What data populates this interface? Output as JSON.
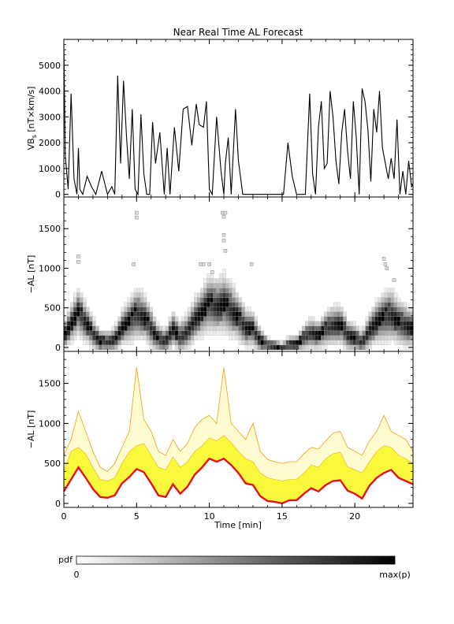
{
  "title": "Near Real Time AL Forecast",
  "colors": {
    "axis": "#000000",
    "vbs_line": "#000000",
    "band_fill": "#f7f93a",
    "band_edge": "#f5a623",
    "median_line": "#e5111b",
    "pdf_low": "#ffffff",
    "pdf_high": "#000000"
  },
  "colorbar": {
    "label": "pdf",
    "min_label": "0",
    "max_label": "max(p)"
  },
  "chart_data": [
    {
      "id": "vbs",
      "type": "line",
      "title": "Near Real Time AL Forecast",
      "ylabel_main": "VB",
      "ylabel_sub": "s",
      "ylabel_rest": " [nT×km/s]",
      "xlim": [
        0,
        24
      ],
      "ylim": [
        -100,
        6000
      ],
      "yticks": [
        0,
        1000,
        2000,
        3000,
        4000,
        5000
      ],
      "xticks": [
        0,
        5,
        10,
        15,
        20
      ],
      "series": [
        {
          "x": [
            0,
            0.1,
            0.3,
            0.5,
            0.7,
            0.9,
            1.0,
            1.1,
            1.3,
            1.6,
            1.9,
            2.2,
            2.6,
            3.0,
            3.3,
            3.5,
            3.7,
            3.9,
            4.1,
            4.3,
            4.5,
            4.7,
            4.9,
            5.1,
            5.3,
            5.5,
            5.7,
            5.9,
            6.1,
            6.3,
            6.6,
            6.9,
            7.1,
            7.3,
            7.6,
            7.9,
            8.2,
            8.5,
            8.8,
            9.1,
            9.3,
            9.6,
            9.8,
            10.0,
            10.2,
            10.5,
            10.8,
            11.0,
            11.1,
            11.3,
            11.5,
            11.8,
            12.0,
            12.3,
            12.6,
            12.9,
            13.1,
            13.3,
            13.6,
            13.9,
            14.2,
            14.5,
            14.8,
            15.1,
            15.4,
            15.7,
            16.0,
            16.3,
            16.6,
            16.9,
            17.1,
            17.3,
            17.5,
            17.7,
            17.9,
            18.1,
            18.3,
            18.5,
            18.7,
            18.9,
            19.1,
            19.3,
            19.5,
            19.7,
            19.9,
            20.1,
            20.3,
            20.5,
            20.7,
            20.9,
            21.1,
            21.3,
            21.5,
            21.7,
            21.9,
            22.1,
            22.3,
            22.5,
            22.7,
            22.9,
            23.1,
            23.3,
            23.5,
            23.7,
            23.9,
            24.0
          ],
          "y": [
            5800,
            1500,
            200,
            3900,
            600,
            0,
            1800,
            200,
            0,
            700,
            300,
            0,
            900,
            0,
            300,
            0,
            4600,
            1200,
            4400,
            2300,
            600,
            3300,
            200,
            0,
            3100,
            800,
            0,
            0,
            2800,
            1200,
            2400,
            0,
            1800,
            0,
            2600,
            900,
            3300,
            3400,
            1900,
            3500,
            2700,
            2600,
            3600,
            200,
            0,
            3000,
            900,
            0,
            1200,
            2200,
            0,
            3300,
            1300,
            0,
            0,
            0,
            0,
            0,
            0,
            0,
            0,
            0,
            0,
            0,
            2000,
            700,
            0,
            0,
            0,
            3900,
            800,
            0,
            2600,
            3600,
            1000,
            1200,
            4000,
            3000,
            1300,
            400,
            2400,
            3300,
            1700,
            600,
            3600,
            2200,
            0,
            4100,
            3600,
            2500,
            500,
            3300,
            2400,
            4000,
            1800,
            1200,
            600,
            1400,
            600,
            2900,
            0,
            900,
            0,
            1300,
            300,
            400
          ]
        }
      ]
    },
    {
      "id": "al-pdf",
      "type": "heatmap",
      "ylabel": "−AL [nT]",
      "xlim": [
        0,
        24
      ],
      "ylim": [
        -50,
        1900
      ],
      "yticks": [
        0,
        500,
        1000,
        1500
      ],
      "xticks": [
        0,
        5,
        10,
        15,
        20
      ],
      "x": [
        0,
        0.5,
        1,
        1.5,
        2,
        2.5,
        3,
        3.5,
        4,
        4.5,
        5,
        5.5,
        6,
        6.5,
        7,
        7.5,
        8,
        8.5,
        9,
        9.5,
        10,
        10.5,
        11,
        11.5,
        12,
        12.5,
        13,
        13.5,
        14,
        14.5,
        15,
        15.5,
        16,
        16.5,
        17,
        17.5,
        18,
        18.5,
        19,
        19.5,
        20,
        20.5,
        21,
        21.5,
        22,
        22.5,
        23,
        23.5,
        24
      ],
      "median": [
        150,
        300,
        450,
        320,
        180,
        80,
        70,
        100,
        250,
        330,
        430,
        390,
        250,
        100,
        80,
        240,
        120,
        210,
        360,
        450,
        560,
        520,
        560,
        480,
        380,
        250,
        230,
        90,
        30,
        20,
        0,
        40,
        40,
        120,
        190,
        150,
        230,
        280,
        290,
        160,
        120,
        60,
        220,
        320,
        380,
        420,
        320,
        280,
        240
      ],
      "spread": [
        180,
        250,
        300,
        260,
        200,
        150,
        140,
        160,
        230,
        280,
        320,
        300,
        250,
        180,
        170,
        230,
        200,
        230,
        280,
        320,
        360,
        340,
        380,
        340,
        300,
        250,
        230,
        160,
        100,
        80,
        60,
        110,
        110,
        160,
        200,
        180,
        220,
        250,
        260,
        200,
        180,
        150,
        230,
        280,
        320,
        330,
        290,
        270,
        250
      ],
      "outliers": [
        {
          "x": 1.0,
          "y": 1150
        },
        {
          "x": 1.0,
          "y": 1080
        },
        {
          "x": 4.8,
          "y": 1050
        },
        {
          "x": 5.0,
          "y": 1700
        },
        {
          "x": 5.0,
          "y": 1640
        },
        {
          "x": 9.4,
          "y": 1050
        },
        {
          "x": 9.6,
          "y": 1050
        },
        {
          "x": 10.0,
          "y": 1050
        },
        {
          "x": 10.2,
          "y": 950
        },
        {
          "x": 10.9,
          "y": 1700
        },
        {
          "x": 11.0,
          "y": 1650
        },
        {
          "x": 11.0,
          "y": 1420
        },
        {
          "x": 11.0,
          "y": 1350
        },
        {
          "x": 11.1,
          "y": 1220
        },
        {
          "x": 11.1,
          "y": 1700
        },
        {
          "x": 12.9,
          "y": 1050
        },
        {
          "x": 22.0,
          "y": 1120
        },
        {
          "x": 22.1,
          "y": 1050
        },
        {
          "x": 22.2,
          "y": 1000
        },
        {
          "x": 22.7,
          "y": 850
        }
      ]
    },
    {
      "id": "al-band",
      "type": "area",
      "ylabel": "−AL [nT]",
      "xlabel": "Time [min]",
      "xlim": [
        0,
        24
      ],
      "ylim": [
        -50,
        1900
      ],
      "yticks": [
        0,
        500,
        1000,
        1500
      ],
      "xticks": [
        0,
        5,
        10,
        15,
        20
      ],
      "x": [
        0,
        0.5,
        1,
        1.5,
        2,
        2.5,
        3,
        3.5,
        4,
        4.5,
        5,
        5.5,
        6,
        6.5,
        7,
        7.5,
        8,
        8.5,
        9,
        9.5,
        10,
        10.5,
        11,
        11.5,
        12,
        12.5,
        13,
        13.5,
        14,
        14.5,
        15,
        15.5,
        16,
        16.5,
        17,
        17.5,
        18,
        18.5,
        19,
        19.5,
        20,
        20.5,
        21,
        21.5,
        22,
        22.5,
        23,
        23.5,
        24
      ],
      "median": [
        150,
        300,
        450,
        320,
        180,
        80,
        70,
        100,
        250,
        330,
        430,
        390,
        250,
        100,
        80,
        240,
        120,
        210,
        360,
        450,
        560,
        520,
        560,
        480,
        380,
        250,
        230,
        90,
        30,
        20,
        0,
        40,
        40,
        120,
        190,
        150,
        230,
        280,
        290,
        160,
        120,
        60,
        220,
        320,
        380,
        420,
        320,
        280,
        240
      ],
      "band_upper": [
        400,
        650,
        700,
        620,
        450,
        300,
        280,
        320,
        500,
        650,
        720,
        750,
        600,
        450,
        420,
        580,
        450,
        520,
        650,
        720,
        820,
        780,
        850,
        760,
        650,
        560,
        520,
        380,
        320,
        300,
        280,
        300,
        300,
        380,
        480,
        450,
        560,
        620,
        640,
        460,
        420,
        380,
        520,
        650,
        720,
        700,
        600,
        560,
        500
      ],
      "envelope_upper": [
        600,
        800,
        1150,
        900,
        650,
        450,
        400,
        500,
        700,
        900,
        1700,
        1050,
        900,
        650,
        600,
        800,
        650,
        750,
        950,
        1050,
        1100,
        1000,
        1700,
        1000,
        900,
        800,
        1000,
        650,
        550,
        520,
        500,
        520,
        520,
        620,
        700,
        680,
        780,
        880,
        900,
        700,
        650,
        600,
        780,
        900,
        1100,
        900,
        850,
        800,
        650
      ]
    }
  ]
}
